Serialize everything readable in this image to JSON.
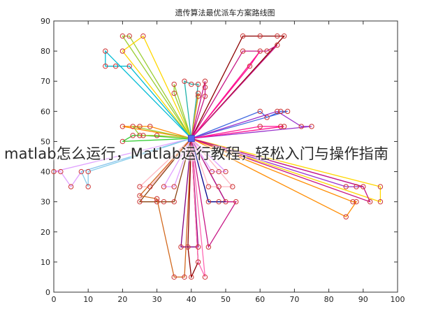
{
  "overlay": {
    "caption": "matlab怎么运行，Matlab运行教程，轻松入门与操作指南"
  },
  "chart_data": {
    "type": "line",
    "title": "遗传算法最优派车方案路线图",
    "xlabel": "",
    "ylabel": "",
    "xlim": [
      0,
      100
    ],
    "ylim": [
      0,
      90
    ],
    "xticks": [
      0,
      10,
      20,
      30,
      40,
      50,
      60,
      70,
      80,
      90,
      100
    ],
    "yticks": [
      0,
      10,
      20,
      30,
      40,
      50,
      60,
      70,
      80,
      90
    ],
    "grid": false,
    "depot": {
      "x": 40,
      "y": 51,
      "color": "#5566ee"
    },
    "marker_color": "#cc3333",
    "series": [
      {
        "color": "#9acd32",
        "points": [
          [
            40,
            51
          ],
          [
            20,
            85
          ],
          [
            22,
            85
          ],
          [
            40,
            51
          ]
        ]
      },
      {
        "color": "#ffd700",
        "points": [
          [
            40,
            51
          ],
          [
            26,
            85
          ],
          [
            20,
            80
          ],
          [
            40,
            51
          ]
        ]
      },
      {
        "color": "#00bcd4",
        "points": [
          [
            40,
            51
          ],
          [
            15,
            80
          ],
          [
            15,
            75
          ],
          [
            18,
            75
          ],
          [
            22,
            75
          ],
          [
            40,
            51
          ]
        ]
      },
      {
        "color": "#8b0000",
        "points": [
          [
            40,
            51
          ],
          [
            55,
            85
          ],
          [
            60,
            85
          ],
          [
            65,
            85
          ],
          [
            67,
            85
          ],
          [
            40,
            51
          ]
        ]
      },
      {
        "color": "#c71585",
        "points": [
          [
            40,
            51
          ],
          [
            55,
            80
          ],
          [
            60,
            80
          ],
          [
            62,
            80
          ],
          [
            65,
            82
          ],
          [
            40,
            51
          ]
        ]
      },
      {
        "color": "#ff1493",
        "points": [
          [
            40,
            51
          ],
          [
            57,
            75
          ],
          [
            60,
            80
          ],
          [
            40,
            51
          ]
        ]
      },
      {
        "color": "#9acd32",
        "points": [
          [
            40,
            51
          ],
          [
            35,
            69
          ],
          [
            35,
            66
          ],
          [
            40,
            51
          ]
        ]
      },
      {
        "color": "#20b2aa",
        "points": [
          [
            40,
            51
          ],
          [
            38,
            70
          ],
          [
            40,
            69
          ],
          [
            42,
            69
          ],
          [
            40,
            51
          ]
        ]
      },
      {
        "color": "#daa520",
        "points": [
          [
            40,
            51
          ],
          [
            42,
            66
          ],
          [
            42,
            65
          ],
          [
            40,
            51
          ]
        ]
      },
      {
        "color": "#c71585",
        "points": [
          [
            40,
            51
          ],
          [
            44,
            70
          ],
          [
            44,
            68
          ],
          [
            44,
            65
          ],
          [
            40,
            51
          ]
        ]
      },
      {
        "color": "#4169e1",
        "points": [
          [
            40,
            51
          ],
          [
            60,
            60
          ],
          [
            62,
            58
          ],
          [
            66,
            60
          ],
          [
            68,
            60
          ],
          [
            40,
            51
          ]
        ]
      },
      {
        "color": "#9932cc",
        "points": [
          [
            40,
            51
          ],
          [
            65,
            60
          ],
          [
            72,
            55
          ],
          [
            75,
            55
          ],
          [
            40,
            51
          ]
        ]
      },
      {
        "color": "#ff1493",
        "points": [
          [
            40,
            51
          ],
          [
            60,
            55
          ],
          [
            66,
            55
          ],
          [
            67,
            55
          ],
          [
            40,
            51
          ]
        ]
      },
      {
        "color": "#ff8c00",
        "points": [
          [
            40,
            51
          ],
          [
            20,
            55
          ],
          [
            25,
            55
          ],
          [
            28,
            55
          ],
          [
            40,
            51
          ]
        ]
      },
      {
        "color": "#32cd32",
        "points": [
          [
            40,
            51
          ],
          [
            20,
            50
          ],
          [
            23,
            52
          ],
          [
            26,
            52
          ],
          [
            40,
            51
          ]
        ]
      },
      {
        "color": "#9acd32",
        "points": [
          [
            40,
            51
          ],
          [
            23,
            55
          ],
          [
            25,
            52
          ],
          [
            30,
            52
          ],
          [
            40,
            51
          ]
        ]
      },
      {
        "color": "#e0a0ff",
        "points": [
          [
            40,
            51
          ],
          [
            0,
            40
          ],
          [
            2,
            40
          ],
          [
            5,
            35
          ],
          [
            8,
            40
          ],
          [
            40,
            51
          ]
        ]
      },
      {
        "color": "#87ceeb",
        "points": [
          [
            40,
            51
          ],
          [
            8,
            40
          ],
          [
            10,
            35
          ],
          [
            10,
            40
          ],
          [
            40,
            51
          ]
        ]
      },
      {
        "color": "#ffb6c1",
        "points": [
          [
            40,
            51
          ],
          [
            25,
            35
          ],
          [
            28,
            35
          ],
          [
            40,
            51
          ]
        ]
      },
      {
        "color": "#e0a0ff",
        "points": [
          [
            40,
            51
          ],
          [
            32,
            35
          ],
          [
            35,
            35
          ],
          [
            40,
            51
          ]
        ]
      },
      {
        "color": "#8b4513",
        "points": [
          [
            40,
            51
          ],
          [
            25,
            30
          ],
          [
            30,
            30
          ],
          [
            32,
            30
          ],
          [
            35,
            30
          ],
          [
            40,
            51
          ]
        ]
      },
      {
        "color": "#d2691e",
        "points": [
          [
            40,
            51
          ],
          [
            25,
            32
          ],
          [
            30,
            31
          ],
          [
            35,
            5
          ],
          [
            38,
            5
          ],
          [
            40,
            51
          ]
        ]
      },
      {
        "color": "#800080",
        "points": [
          [
            40,
            51
          ],
          [
            37,
            15
          ],
          [
            42,
            15
          ],
          [
            40,
            51
          ]
        ]
      },
      {
        "color": "#8b0000",
        "points": [
          [
            40,
            51
          ],
          [
            39,
            15
          ],
          [
            40,
            5
          ],
          [
            42,
            10
          ],
          [
            40,
            51
          ]
        ]
      },
      {
        "color": "#ff69b4",
        "points": [
          [
            40,
            51
          ],
          [
            44,
            5
          ],
          [
            42,
            10
          ],
          [
            40,
            51
          ]
        ]
      },
      {
        "color": "#00008b",
        "points": [
          [
            40,
            51
          ],
          [
            45,
            30
          ],
          [
            48,
            30
          ],
          [
            50,
            30
          ],
          [
            40,
            51
          ]
        ]
      },
      {
        "color": "#c71585",
        "points": [
          [
            40,
            51
          ],
          [
            50,
            30
          ],
          [
            53,
            30
          ],
          [
            45,
            15
          ],
          [
            40,
            51
          ]
        ]
      },
      {
        "color": "#e0a0ff",
        "points": [
          [
            40,
            51
          ],
          [
            46,
            40
          ],
          [
            48,
            40
          ],
          [
            50,
            40
          ],
          [
            40,
            51
          ]
        ]
      },
      {
        "color": "#ffb6c1",
        "points": [
          [
            40,
            51
          ],
          [
            45,
            35
          ],
          [
            48,
            35
          ],
          [
            52,
            35
          ],
          [
            40,
            51
          ]
        ]
      },
      {
        "color": "#9932cc",
        "points": [
          [
            40,
            51
          ],
          [
            85,
            35
          ],
          [
            88,
            35
          ],
          [
            90,
            35
          ],
          [
            40,
            51
          ]
        ]
      },
      {
        "color": "#ffd700",
        "points": [
          [
            40,
            51
          ],
          [
            95,
            35
          ],
          [
            95,
            30
          ],
          [
            40,
            51
          ]
        ]
      },
      {
        "color": "#ff8c00",
        "points": [
          [
            40,
            51
          ],
          [
            87,
            30
          ],
          [
            88,
            30
          ],
          [
            85,
            25
          ],
          [
            40,
            51
          ]
        ]
      },
      {
        "color": "#c71585",
        "points": [
          [
            40,
            51
          ],
          [
            92,
            30
          ],
          [
            90,
            35
          ],
          [
            40,
            51
          ]
        ]
      }
    ]
  }
}
